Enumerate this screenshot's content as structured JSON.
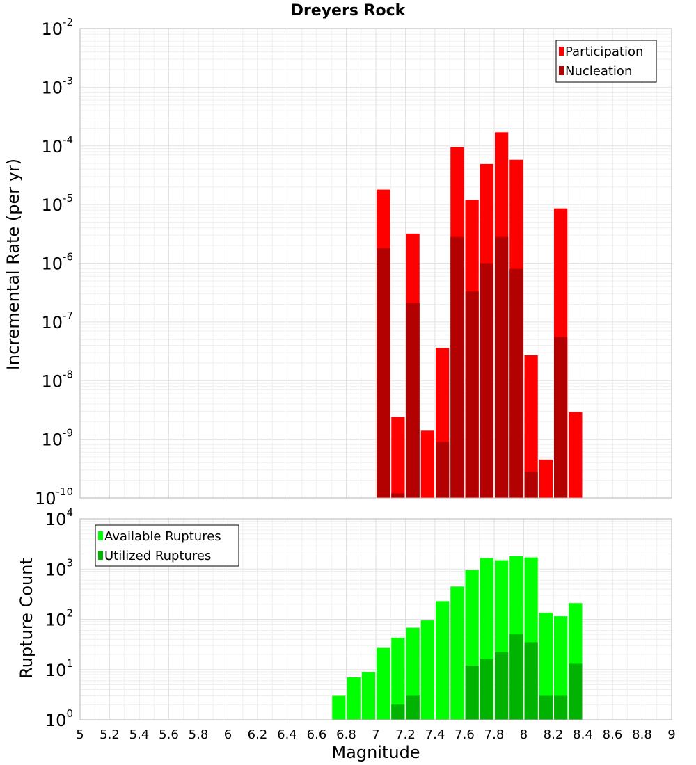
{
  "chart_data": [
    {
      "type": "bar",
      "title": "Dreyers Rock",
      "xlabel": "Magnitude",
      "ylabel": "Incremental Rate (per yr)",
      "yscale": "log",
      "xlim": [
        5,
        9
      ],
      "ylim_exponent": [
        -10,
        -2
      ],
      "bar_width": 0.1,
      "legend_position": "top-right",
      "grid": true,
      "series": [
        {
          "name": "Participation",
          "color": "#ff0000",
          "points": [
            {
              "x": 7.05,
              "y": 1.8e-05
            },
            {
              "x": 7.15,
              "y": 2.4e-09
            },
            {
              "x": 7.25,
              "y": 3.2e-06
            },
            {
              "x": 7.35,
              "y": 1.4e-09
            },
            {
              "x": 7.45,
              "y": 3.6e-08
            },
            {
              "x": 7.55,
              "y": 9.5e-05
            },
            {
              "x": 7.65,
              "y": 1.2e-05
            },
            {
              "x": 7.75,
              "y": 4.9e-05
            },
            {
              "x": 7.85,
              "y": 0.00017
            },
            {
              "x": 7.95,
              "y": 5.8e-05
            },
            {
              "x": 8.05,
              "y": 2.7e-08
            },
            {
              "x": 8.15,
              "y": 4.5e-10
            },
            {
              "x": 8.25,
              "y": 8.6e-06
            },
            {
              "x": 8.35,
              "y": 2.9e-09
            }
          ]
        },
        {
          "name": "Nucleation",
          "color": "#b30000",
          "points": [
            {
              "x": 7.05,
              "y": 1.8e-06
            },
            {
              "x": 7.15,
              "y": 1.2e-10
            },
            {
              "x": 7.25,
              "y": 2.1e-07
            },
            {
              "x": 7.45,
              "y": 9e-10
            },
            {
              "x": 7.55,
              "y": 2.8e-06
            },
            {
              "x": 7.65,
              "y": 3.3e-07
            },
            {
              "x": 7.75,
              "y": 1e-06
            },
            {
              "x": 7.85,
              "y": 2.8e-06
            },
            {
              "x": 7.95,
              "y": 8e-07
            },
            {
              "x": 8.05,
              "y": 2.8e-10
            },
            {
              "x": 8.25,
              "y": 5.5e-08
            }
          ]
        }
      ]
    },
    {
      "type": "bar",
      "xlabel": "Magnitude",
      "ylabel": "Rupture Count",
      "yscale": "log",
      "xlim": [
        5,
        9
      ],
      "ylim_exponent": [
        0,
        4
      ],
      "bar_width": 0.1,
      "legend_position": "top-left",
      "grid": true,
      "x_ticks": [
        "5",
        "5.2",
        "5.4",
        "5.6",
        "5.8",
        "6",
        "6.2",
        "6.4",
        "6.6",
        "6.8",
        "7",
        "7.2",
        "7.4",
        "7.6",
        "7.8",
        "8",
        "8.2",
        "8.4",
        "8.6",
        "8.8",
        "9"
      ],
      "series": [
        {
          "name": "Available Ruptures",
          "color": "#00ff00",
          "points": [
            {
              "x": 6.25,
              "y": 1
            },
            {
              "x": 6.55,
              "y": 1
            },
            {
              "x": 6.75,
              "y": 3
            },
            {
              "x": 6.85,
              "y": 7
            },
            {
              "x": 6.95,
              "y": 9
            },
            {
              "x": 7.05,
              "y": 27
            },
            {
              "x": 7.15,
              "y": 43
            },
            {
              "x": 7.25,
              "y": 68
            },
            {
              "x": 7.35,
              "y": 95
            },
            {
              "x": 7.45,
              "y": 230
            },
            {
              "x": 7.55,
              "y": 450
            },
            {
              "x": 7.65,
              "y": 950
            },
            {
              "x": 7.75,
              "y": 1650
            },
            {
              "x": 7.85,
              "y": 1500
            },
            {
              "x": 7.95,
              "y": 1800
            },
            {
              "x": 8.05,
              "y": 1700
            },
            {
              "x": 8.15,
              "y": 135
            },
            {
              "x": 8.25,
              "y": 115
            },
            {
              "x": 8.35,
              "y": 210
            },
            {
              "x": 8.45,
              "y": 1
            }
          ]
        },
        {
          "name": "Utilized Ruptures",
          "color": "#00b300",
          "points": [
            {
              "x": 7.05,
              "y": 1
            },
            {
              "x": 7.15,
              "y": 2
            },
            {
              "x": 7.25,
              "y": 3
            },
            {
              "x": 7.35,
              "y": 1
            },
            {
              "x": 7.45,
              "y": 1
            },
            {
              "x": 7.55,
              "y": 1
            },
            {
              "x": 7.65,
              "y": 12
            },
            {
              "x": 7.75,
              "y": 16
            },
            {
              "x": 7.85,
              "y": 22
            },
            {
              "x": 7.95,
              "y": 50
            },
            {
              "x": 8.05,
              "y": 35
            },
            {
              "x": 8.15,
              "y": 3
            },
            {
              "x": 8.25,
              "y": 3
            },
            {
              "x": 8.35,
              "y": 13
            },
            {
              "x": 8.45,
              "y": 1
            }
          ]
        }
      ]
    }
  ]
}
